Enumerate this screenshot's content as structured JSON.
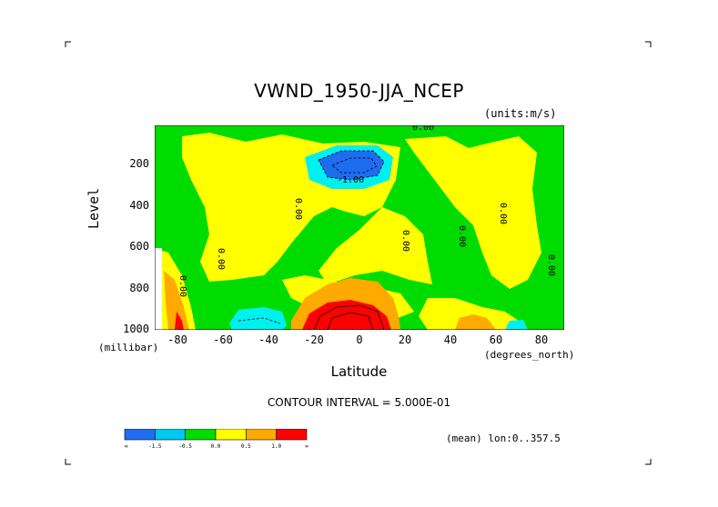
{
  "chart_data": {
    "type": "heatmap",
    "title": "VWND_1950-JJA_NCEP",
    "units_note": "(units:m/s)",
    "xlabel": "Latitude",
    "xunits": "(degrees_north)",
    "ylabel": "Level",
    "yunits": "(millibar)",
    "x_ticks": [
      "-80",
      "-60",
      "-40",
      "-20",
      "0",
      "20",
      "40",
      "60",
      "80"
    ],
    "y_ticks": [
      "200",
      "400",
      "600",
      "800",
      "1000"
    ],
    "xlim": [
      -90,
      90
    ],
    "ylim": [
      1000,
      10
    ],
    "contour_interval": "CONTOUR INTERVAL = 5.000E-01",
    "contour_labels": [
      "0.00",
      "-1.00",
      "0.00",
      "0.00",
      "0.00",
      "0.00",
      "0.00",
      "0.00",
      "0.00"
    ],
    "colorbar": {
      "colors": [
        "#1e6cf0",
        "#00c8f0",
        "#00dc00",
        "#ffff00",
        "#ffaa00",
        "#ff0000"
      ],
      "ticks": [
        "-∞",
        "-1.5",
        "-0.5",
        "0.0",
        "0.5",
        "1.0",
        "∞"
      ]
    },
    "mean_note": "(mean) lon:0..357.5"
  }
}
